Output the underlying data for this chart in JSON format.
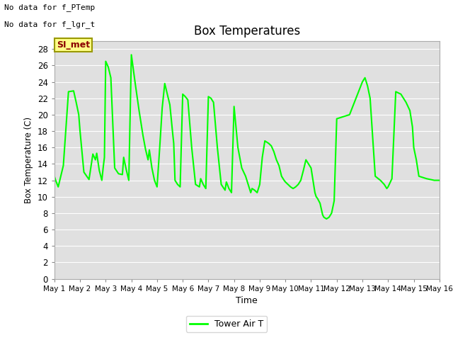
{
  "title": "Box Temperatures",
  "xlabel": "Time",
  "ylabel": "Box Temperature (C)",
  "ylim": [
    0,
    29
  ],
  "yticks": [
    0,
    2,
    4,
    6,
    8,
    10,
    12,
    14,
    16,
    18,
    20,
    22,
    24,
    26,
    28
  ],
  "bg_color": "#e0e0e0",
  "line_color": "#00ff00",
  "legend_label": "Tower Air T",
  "no_data_text1": "No data for f_PTemp",
  "no_data_text2": "No data for f_lgr_t",
  "si_met_label": "SI_met",
  "x_labels": [
    "May 1",
    "May 2",
    "May 3",
    "May 4",
    "May 5",
    "May 6",
    "May 7",
    "May 8",
    "May 9",
    "May 10",
    "May 11",
    "May 12",
    "May 13",
    "May 14",
    "May 15",
    "May 16"
  ],
  "figsize": [
    6.4,
    4.8
  ],
  "dpi": 100,
  "x_data": [
    1.0,
    1.05,
    1.15,
    1.35,
    1.55,
    1.75,
    1.85,
    1.95,
    2.0,
    2.15,
    2.35,
    2.5,
    2.6,
    2.65,
    2.75,
    2.85,
    2.9,
    2.95,
    3.0,
    3.1,
    3.2,
    3.35,
    3.5,
    3.65,
    3.7,
    3.8,
    3.9,
    4.0,
    4.15,
    4.3,
    4.45,
    4.55,
    4.65,
    4.7,
    4.8,
    4.9,
    5.0,
    5.1,
    5.2,
    5.3,
    5.4,
    5.5,
    5.6,
    5.65,
    5.7,
    5.8,
    5.9,
    6.0,
    6.1,
    6.2,
    6.35,
    6.5,
    6.65,
    6.7,
    6.8,
    6.9,
    7.0,
    7.1,
    7.2,
    7.35,
    7.5,
    7.65,
    7.7,
    7.8,
    7.9,
    8.0,
    8.15,
    8.3,
    8.45,
    8.55,
    8.65,
    8.7,
    8.8,
    8.9,
    9.0,
    9.1,
    9.2,
    9.35,
    9.45,
    9.55,
    9.65,
    9.75,
    9.85,
    9.95,
    10.0,
    10.1,
    10.2,
    10.3,
    10.4,
    10.5,
    10.6,
    10.7,
    10.8,
    10.9,
    11.0,
    11.05,
    11.1,
    11.15,
    11.2,
    11.25,
    11.3,
    11.35,
    11.4,
    11.45,
    11.5,
    11.6,
    11.7,
    11.8,
    11.9,
    12.0,
    12.5,
    13.0,
    13.1,
    13.2,
    13.3,
    13.5,
    13.7,
    13.85,
    13.95,
    14.0,
    14.15,
    14.3,
    14.5,
    14.7,
    14.85,
    14.95,
    15.0,
    15.1,
    15.2,
    15.5,
    15.8,
    16.0
  ],
  "y_data": [
    12.5,
    12.0,
    11.2,
    13.8,
    22.8,
    22.9,
    21.5,
    20.0,
    18.0,
    13.0,
    12.1,
    15.2,
    14.5,
    15.3,
    13.2,
    12.0,
    13.5,
    14.8,
    26.5,
    25.8,
    24.5,
    13.5,
    12.8,
    12.7,
    14.8,
    13.3,
    12.0,
    27.3,
    23.8,
    20.5,
    17.5,
    15.8,
    14.5,
    15.7,
    13.5,
    12.0,
    11.2,
    15.8,
    20.8,
    23.8,
    22.5,
    21.2,
    18.0,
    16.5,
    12.0,
    11.5,
    11.2,
    22.5,
    22.2,
    21.8,
    16.0,
    11.5,
    11.2,
    12.2,
    11.5,
    11.0,
    22.2,
    22.0,
    21.5,
    16.0,
    11.5,
    10.8,
    11.8,
    11.0,
    10.5,
    21.0,
    16.0,
    13.5,
    12.5,
    11.5,
    10.5,
    11.0,
    10.8,
    10.5,
    11.5,
    14.8,
    16.8,
    16.5,
    16.2,
    15.5,
    14.5,
    13.8,
    12.5,
    12.0,
    11.8,
    11.5,
    11.2,
    11.0,
    11.2,
    11.5,
    12.0,
    13.2,
    14.5,
    14.0,
    13.5,
    12.5,
    11.5,
    10.5,
    10.0,
    9.8,
    9.5,
    9.2,
    8.5,
    7.8,
    7.5,
    7.3,
    7.5,
    8.0,
    9.5,
    19.5,
    20.0,
    24.0,
    24.5,
    23.5,
    22.0,
    12.5,
    12.0,
    11.5,
    11.0,
    11.2,
    12.2,
    22.8,
    22.5,
    21.5,
    20.5,
    18.5,
    16.0,
    14.5,
    12.5,
    12.2,
    12.0,
    12.0
  ]
}
